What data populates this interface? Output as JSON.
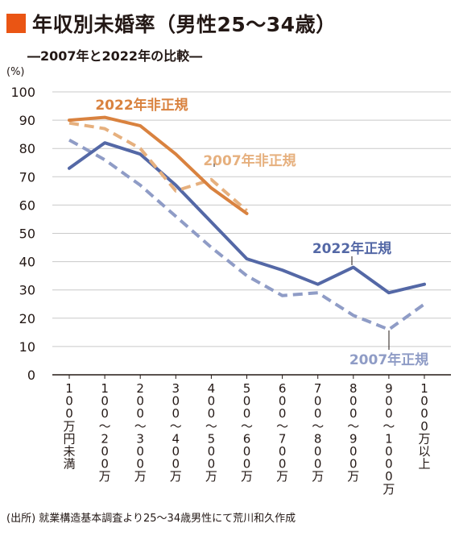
{
  "colors": {
    "accent": "#ea5514",
    "nonregular_2022": "#d9823f",
    "nonregular_2007": "#e6b07e",
    "regular_2022": "#5468a6",
    "regular_2007": "#8f9cc6",
    "grid": "#c9c9c9",
    "axis": "#231815"
  },
  "header": {
    "title": "年収別未婚率（男性25～34歳）",
    "subtitle": "―2007年と2022年の比較―"
  },
  "footer": {
    "source": "(出所) 就業構造基本調査より25～34歳男性にて荒川和久作成"
  },
  "chart_data": {
    "type": "line",
    "ylabel": "(%)",
    "ylim": [
      0,
      100
    ],
    "yticks": [
      0,
      10,
      20,
      30,
      40,
      50,
      60,
      70,
      80,
      90,
      100
    ],
    "grid": "horizontal",
    "categories": [
      "100万円未満",
      "100~200万",
      "200~300万",
      "300~400万",
      "400~500万",
      "500~600万",
      "600~700万",
      "700~800万",
      "800~900万",
      "900~1000万",
      "1000万以上"
    ],
    "series": [
      {
        "name": "2022年非正規",
        "color": "#d9823f",
        "dash": false,
        "values": [
          90,
          91,
          88,
          78,
          66,
          57,
          null,
          null,
          null,
          null,
          null
        ]
      },
      {
        "name": "2007年非正規",
        "color": "#e6b07e",
        "dash": true,
        "values": [
          89,
          87,
          80,
          65,
          69,
          58,
          null,
          null,
          null,
          null,
          null
        ]
      },
      {
        "name": "2022年正規",
        "color": "#5468a6",
        "dash": false,
        "values": [
          73,
          82,
          78,
          67,
          54,
          41,
          37,
          32,
          38,
          29,
          32
        ]
      },
      {
        "name": "2007年正規",
        "color": "#8f9cc6",
        "dash": true,
        "values": [
          83,
          76,
          67,
          56,
          45,
          35,
          28,
          29,
          21,
          16,
          25
        ]
      }
    ]
  }
}
